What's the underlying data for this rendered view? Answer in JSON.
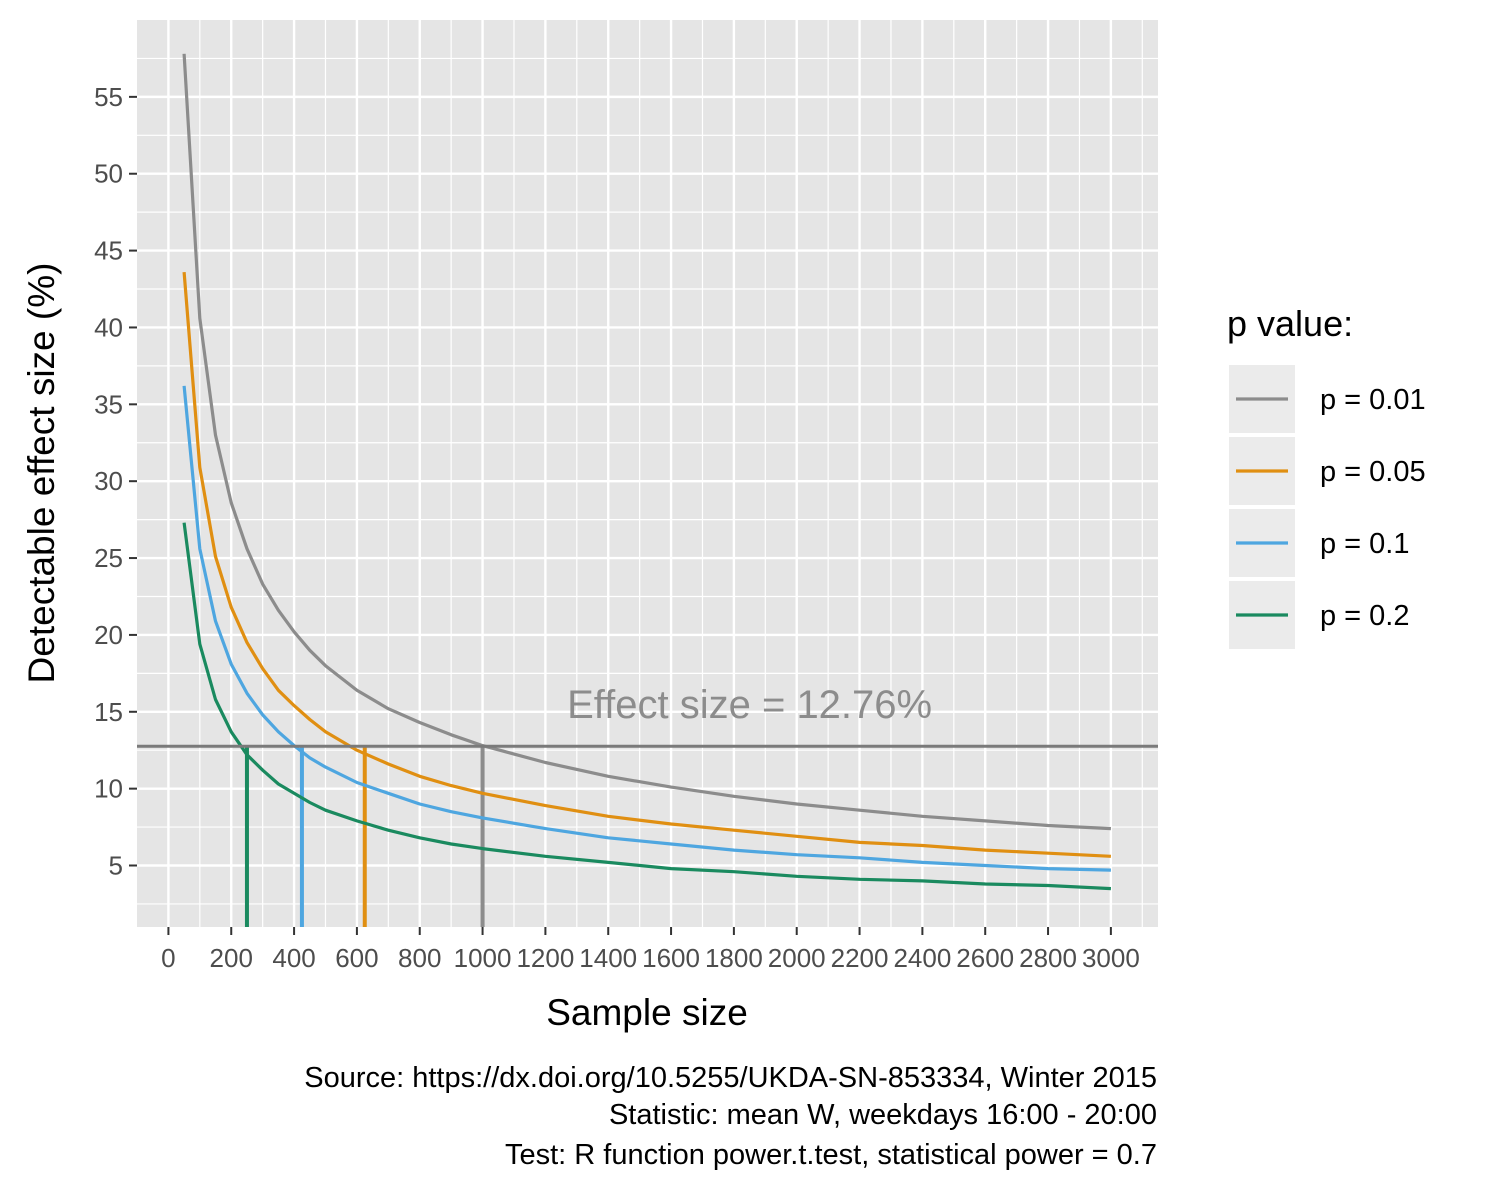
{
  "chart_data": {
    "type": "line",
    "xlabel": "Sample size",
    "ylabel": "Detectable effect size (%)",
    "xlim": [
      -100,
      3150
    ],
    "ylim": [
      1,
      60
    ],
    "x_ticks": [
      0,
      200,
      400,
      600,
      800,
      1000,
      1200,
      1400,
      1600,
      1800,
      2000,
      2200,
      2400,
      2600,
      2800,
      3000
    ],
    "y_ticks": [
      5,
      10,
      15,
      20,
      25,
      30,
      35,
      40,
      45,
      50,
      55
    ],
    "grid": true,
    "legend": {
      "title": "p value:",
      "position": "right"
    },
    "x": [
      50,
      100,
      150,
      200,
      250,
      300,
      350,
      400,
      450,
      500,
      600,
      700,
      800,
      900,
      1000,
      1200,
      1400,
      1600,
      1800,
      2000,
      2200,
      2400,
      2600,
      2800,
      3000
    ],
    "series": [
      {
        "name": "p = 0.01",
        "color": "#8c8c8c",
        "values": [
          57.8,
          40.6,
          33.0,
          28.6,
          25.6,
          23.3,
          21.6,
          20.2,
          19.0,
          18.0,
          16.4,
          15.2,
          14.3,
          13.5,
          12.8,
          11.7,
          10.8,
          10.1,
          9.5,
          9.0,
          8.6,
          8.2,
          7.9,
          7.6,
          7.4
        ]
      },
      {
        "name": "p = 0.05",
        "color": "#e08f12",
        "values": [
          43.6,
          30.9,
          25.1,
          21.8,
          19.5,
          17.8,
          16.4,
          15.4,
          14.5,
          13.7,
          12.5,
          11.6,
          10.8,
          10.2,
          9.7,
          8.9,
          8.2,
          7.7,
          7.3,
          6.9,
          6.5,
          6.3,
          6.0,
          5.8,
          5.6
        ]
      },
      {
        "name": "p = 0.1",
        "color": "#4ea6e0",
        "values": [
          36.2,
          25.6,
          20.9,
          18.1,
          16.2,
          14.8,
          13.7,
          12.8,
          12.0,
          11.4,
          10.4,
          9.7,
          9.0,
          8.5,
          8.1,
          7.4,
          6.8,
          6.4,
          6.0,
          5.7,
          5.5,
          5.2,
          5.0,
          4.8,
          4.7
        ]
      },
      {
        "name": "p = 0.2",
        "color": "#1a8a5f",
        "values": [
          27.3,
          19.4,
          15.8,
          13.7,
          12.2,
          11.2,
          10.3,
          9.7,
          9.1,
          8.6,
          7.9,
          7.3,
          6.8,
          6.4,
          6.1,
          5.6,
          5.2,
          4.8,
          4.6,
          4.3,
          4.1,
          4.0,
          3.8,
          3.7,
          3.5
        ]
      }
    ],
    "reference_line": {
      "y": 12.76,
      "label": "Effect size = 12.76%",
      "color": "#7a7a7a"
    },
    "drop_lines": [
      {
        "series": "p = 0.01",
        "x": 1000
      },
      {
        "series": "p = 0.05",
        "x": 625
      },
      {
        "series": "p = 0.1",
        "x": 425
      },
      {
        "series": "p = 0.2",
        "x": 250
      }
    ],
    "caption": [
      "Source: https://dx.doi.org/10.5255/UKDA-SN-853334, Winter 2015",
      "Statistic: mean W, weekdays 16:00 - 20:00",
      "Test: R function power.t.test, statistical power = 0.7"
    ],
    "colors": {
      "panel_background": "#e5e5e5",
      "grid": "#ffffff"
    }
  }
}
